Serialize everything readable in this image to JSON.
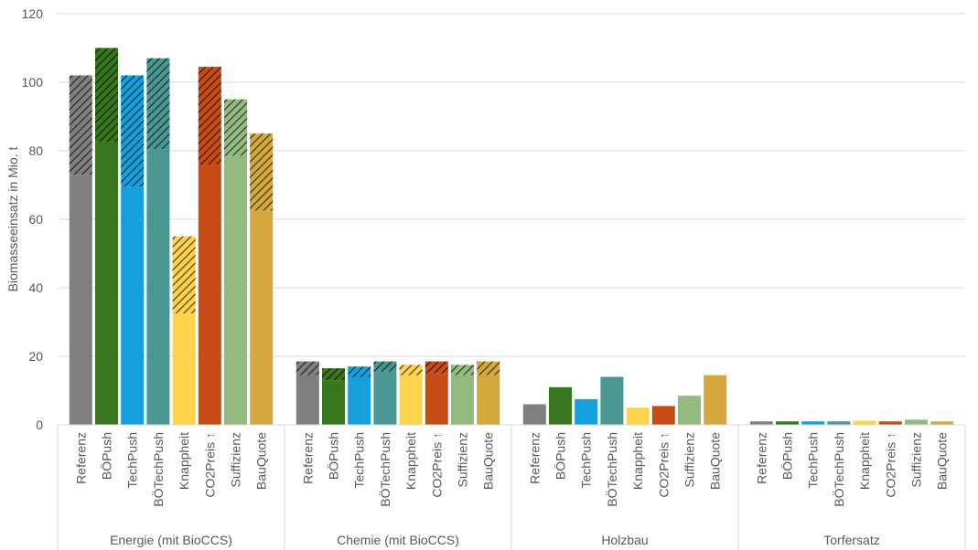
{
  "chart_data": {
    "type": "bar",
    "stacked": true,
    "ylabel": "Biomasseeinsatz in Mio. t",
    "ylim": [
      0,
      120
    ],
    "yticks": [
      "0",
      "20",
      "40",
      "60",
      "80",
      "100",
      "120"
    ],
    "grid": true,
    "scenarios": [
      "Referenz",
      "BÖPush",
      "TechPush",
      "BÖTechPush",
      "Knappheit",
      "CO2Preis ↑",
      "Suffizienz",
      "BauQuote"
    ],
    "scenario_colors": [
      "#7f7f7f",
      "#38761d",
      "#159fdb",
      "#4a9693",
      "#ffd34e",
      "#c64b15",
      "#93ba7f",
      "#d3a83d"
    ],
    "groups": [
      {
        "name": "Energie (mit BioCCS)",
        "base": [
          73,
          82.5,
          69.5,
          80.5,
          32.5,
          76,
          78.5,
          62.5
        ],
        "hatched": [
          29,
          27.5,
          32.5,
          26.5,
          22.5,
          28.5,
          16.5,
          22.5
        ]
      },
      {
        "name": "Chemie (mit BioCCS)",
        "base": [
          14.5,
          13,
          14,
          15.5,
          14.5,
          15,
          14.5,
          14.5
        ],
        "hatched": [
          4,
          3.5,
          3,
          3,
          3,
          3.5,
          3,
          4
        ]
      },
      {
        "name": "Holzbau",
        "base": [
          6,
          11,
          7.5,
          14,
          5,
          5.5,
          8.5,
          14.5
        ],
        "hatched": [
          0,
          0,
          0,
          0,
          0,
          0,
          0,
          0
        ]
      },
      {
        "name": "Torfersatz",
        "base": [
          1,
          1,
          1,
          1,
          1.2,
          1,
          1.5,
          1
        ],
        "hatched": [
          0,
          0,
          0,
          0,
          0,
          0,
          0,
          0
        ]
      }
    ]
  }
}
